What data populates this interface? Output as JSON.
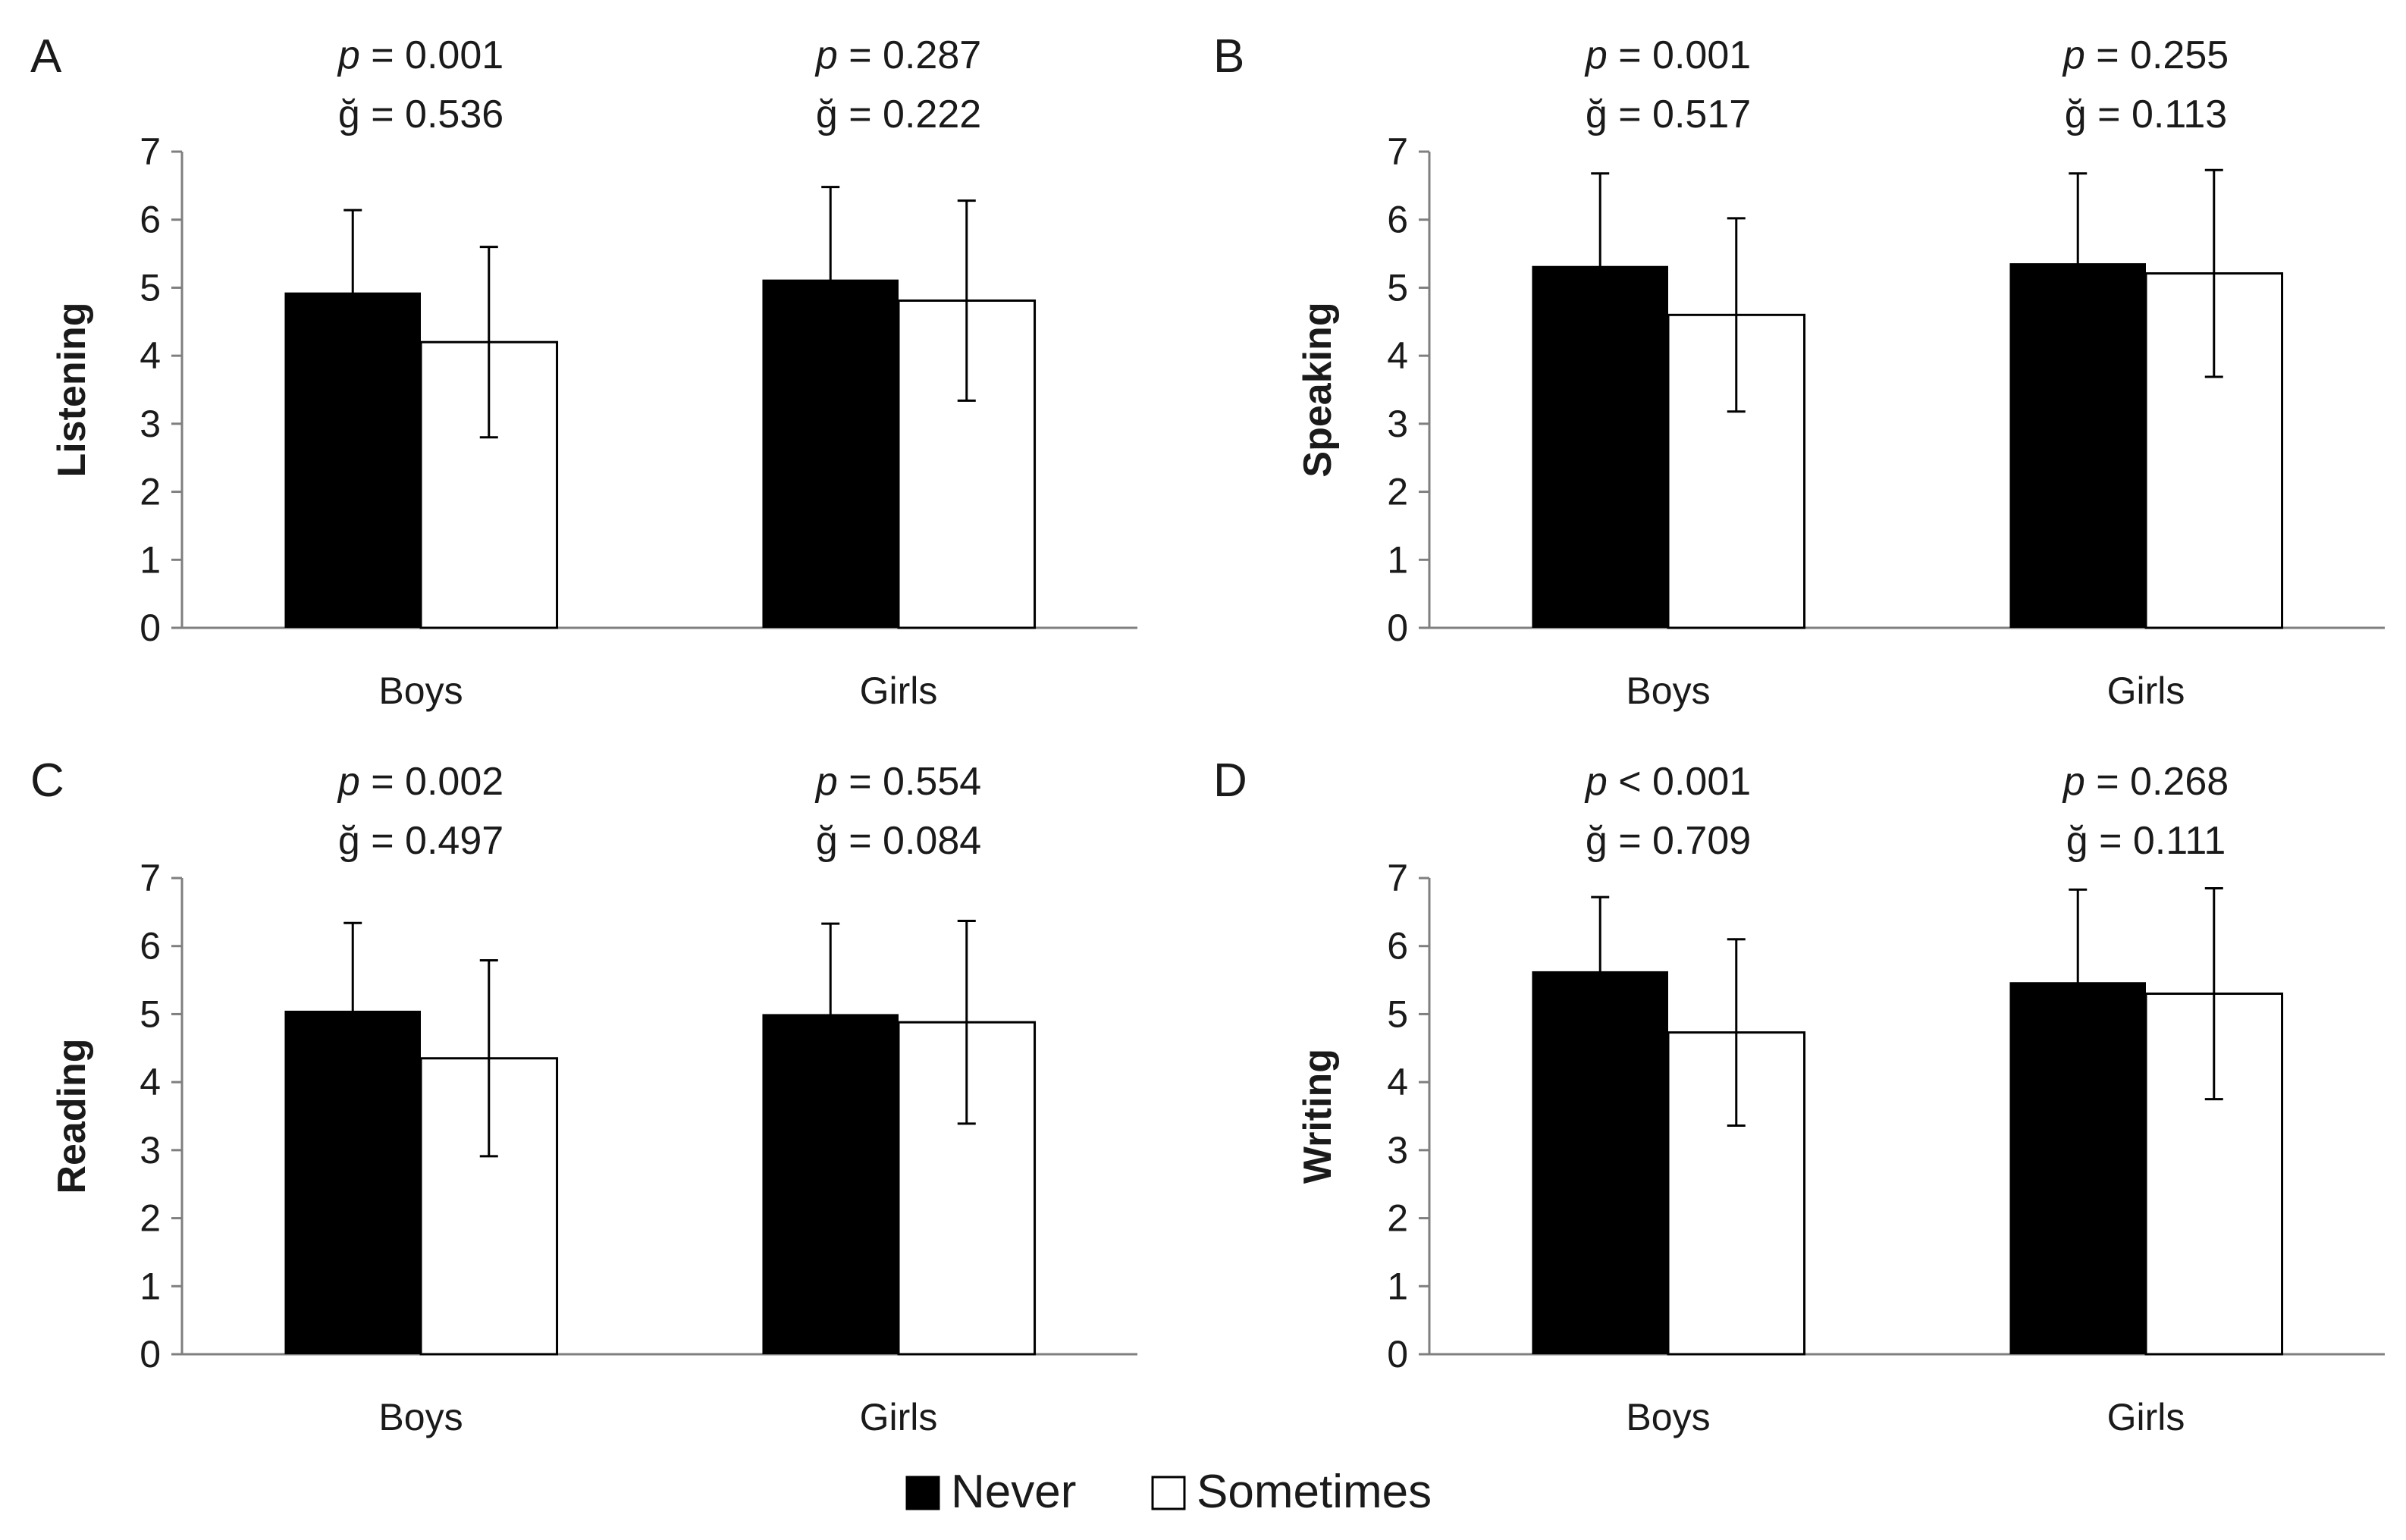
{
  "legend": [
    {
      "label": "Never",
      "color": "#000000"
    },
    {
      "label": "Sometimes",
      "color": "#ffffff"
    }
  ],
  "chart_data": [
    {
      "panel": "A",
      "type": "bar",
      "ylabel": "Listening",
      "ylim": [
        0,
        7
      ],
      "yticks": [
        "0",
        "1",
        "2",
        "3",
        "4",
        "5",
        "6",
        "7"
      ],
      "categories": [
        "Boys",
        "Girls"
      ],
      "stats": [
        {
          "p": "p = 0.001",
          "g": "ğ = 0.536"
        },
        {
          "p": "p = 0.287",
          "g": "ğ = 0.222"
        }
      ],
      "series": [
        {
          "name": "Never",
          "values": [
            4.93,
            5.12
          ],
          "errors": [
            1.21,
            1.36
          ]
        },
        {
          "name": "Sometimes",
          "values": [
            4.2,
            4.81
          ],
          "errors": [
            1.4,
            1.47
          ]
        }
      ]
    },
    {
      "panel": "B",
      "type": "bar",
      "ylabel": "Speaking",
      "ylim": [
        0,
        7
      ],
      "yticks": [
        "0",
        "1",
        "2",
        "3",
        "4",
        "5",
        "6",
        "7"
      ],
      "categories": [
        "Boys",
        "Girls"
      ],
      "stats": [
        {
          "p": "p = 0.001",
          "g": "ğ = 0.517"
        },
        {
          "p": "p = 0.255",
          "g": "ğ = 0.113"
        }
      ],
      "series": [
        {
          "name": "Never",
          "values": [
            5.32,
            5.36
          ],
          "errors": [
            1.36,
            1.32
          ]
        },
        {
          "name": "Sometimes",
          "values": [
            4.6,
            5.21
          ],
          "errors": [
            1.42,
            1.52
          ]
        }
      ]
    },
    {
      "panel": "C",
      "type": "bar",
      "ylabel": "Reading",
      "ylim": [
        0,
        7
      ],
      "yticks": [
        "0",
        "1",
        "2",
        "3",
        "4",
        "5",
        "6",
        "7"
      ],
      "categories": [
        "Boys",
        "Girls"
      ],
      "stats": [
        {
          "p": "p = 0.002",
          "g": "ğ = 0.497"
        },
        {
          "p": "p = 0.554",
          "g": "ğ = 0.084"
        }
      ],
      "series": [
        {
          "name": "Never",
          "values": [
            5.05,
            5.0
          ],
          "errors": [
            1.29,
            1.33
          ]
        },
        {
          "name": "Sometimes",
          "values": [
            4.35,
            4.88
          ],
          "errors": [
            1.44,
            1.49
          ]
        }
      ]
    },
    {
      "panel": "D",
      "type": "bar",
      "ylabel": "Writing",
      "ylim": [
        0,
        7
      ],
      "yticks": [
        "0",
        "1",
        "2",
        "3",
        "4",
        "5",
        "6",
        "7"
      ],
      "categories": [
        "Boys",
        "Girls"
      ],
      "stats": [
        {
          "p": "p < 0.001",
          "g": "ğ = 0.709"
        },
        {
          "p": "p = 0.268",
          "g": "ğ = 0.111"
        }
      ],
      "series": [
        {
          "name": "Never",
          "values": [
            5.63,
            5.47
          ],
          "errors": [
            1.09,
            1.36
          ]
        },
        {
          "name": "Sometimes",
          "values": [
            4.73,
            5.3
          ],
          "errors": [
            1.37,
            1.55
          ]
        }
      ]
    }
  ]
}
